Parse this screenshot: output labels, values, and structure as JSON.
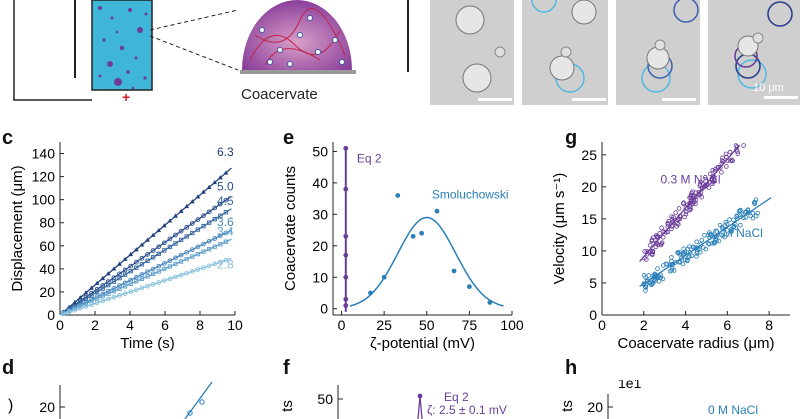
{
  "figure": {
    "panel_letters": [
      "c",
      "d",
      "e",
      "f",
      "g",
      "h"
    ],
    "schematic": {
      "label": "Coacervate",
      "electrode_sign": "+"
    },
    "scale_bar": "10 μm",
    "colors": {
      "purple": "#6a3d9a",
      "blue": "#2a7fb8",
      "dark_blue": "#1f3f7a",
      "light_blue": "#7ec7e6",
      "cyan_fill": "#3fb6d8"
    }
  },
  "chart_data": [
    {
      "panel": "c",
      "type": "scatter",
      "xlabel": "Time (s)",
      "ylabel": "Displacement (μm)",
      "xlim": [
        0,
        10
      ],
      "ylim": [
        0,
        150
      ],
      "xticks": [
        "0",
        "2",
        "4",
        "6",
        "8",
        "10"
      ],
      "yticks": [
        "0",
        "20",
        "40",
        "60",
        "80",
        "100",
        "120",
        "140"
      ],
      "series": [
        {
          "name": "6.3",
          "slope": 13.0,
          "color": "#1f3f7a"
        },
        {
          "name": "5.0",
          "slope": 10.5,
          "color": "#2c4f8f"
        },
        {
          "name": "4.5",
          "slope": 9.4,
          "color": "#3566a0"
        },
        {
          "name": "3.6",
          "slope": 7.5,
          "color": "#4a86bd"
        },
        {
          "name": "3.4",
          "slope": 6.7,
          "color": "#62a2cc"
        },
        {
          "name": "2.8",
          "slope": 5.0,
          "color": "#86c0de"
        }
      ]
    },
    {
      "panel": "e",
      "type": "scatter",
      "xlabel": "ζ-potential (mV)",
      "ylabel": "Coacervate counts",
      "xlim": [
        -5,
        100
      ],
      "ylim": [
        -2,
        53
      ],
      "xticks": [
        "0",
        "25",
        "50",
        "75",
        "100"
      ],
      "yticks": [
        "0",
        "10",
        "20",
        "30",
        "40",
        "50"
      ],
      "annotations": [
        "Eq 2",
        "Smoluchowski"
      ],
      "series": [
        {
          "name": "Eq 2",
          "color": "#6a3d9a",
          "x": [
            2.5,
            2.5,
            2.5,
            2.5,
            2.5,
            2.5,
            2.5
          ],
          "y": [
            51,
            38,
            23,
            17,
            10,
            3,
            1
          ]
        },
        {
          "name": "Smoluchowski",
          "color": "#2a7fb8",
          "x": [
            17,
            25,
            33,
            42,
            47,
            56,
            66,
            75,
            87
          ],
          "y": [
            5,
            10,
            36,
            23,
            24,
            31,
            12,
            7,
            2
          ],
          "fit": {
            "amplitude": 29,
            "center": 50,
            "sigma": 17
          }
        }
      ]
    },
    {
      "panel": "g",
      "type": "scatter",
      "xlabel": "Coacervate radius (μm)",
      "ylabel": "Velocity (μm s⁻¹)",
      "xlim": [
        0,
        9
      ],
      "ylim": [
        0,
        27
      ],
      "xticks": [
        "0",
        "2",
        "4",
        "6",
        "8"
      ],
      "yticks": [
        "0",
        "5",
        "10",
        "15",
        "20",
        "25"
      ],
      "series": [
        {
          "name": "0.3 M NaCl",
          "color": "#6a3d9a",
          "x_range": [
            2.0,
            7.0
          ],
          "slope": 3.8,
          "intercept": 1.5
        },
        {
          "name": "0 M NaCl",
          "color": "#2a7fb8",
          "x_range": [
            2.0,
            7.5
          ],
          "slope": 2.2,
          "intercept": 0.5
        }
      ]
    },
    {
      "panel": "d",
      "type": "scatter",
      "ytick_visible": "20"
    },
    {
      "panel": "f",
      "type": "scatter",
      "ylabel_partial": "ts",
      "ytick_visible": "50",
      "annotations": [
        "Eq 2",
        "ζ: 2.5 ± 0.1 mV"
      ]
    },
    {
      "panel": "h",
      "type": "scatter",
      "ylabel_partial": "ts",
      "ytick_visible": "20",
      "multiplier": "1e1",
      "series_label": "0 M NaCl"
    }
  ]
}
